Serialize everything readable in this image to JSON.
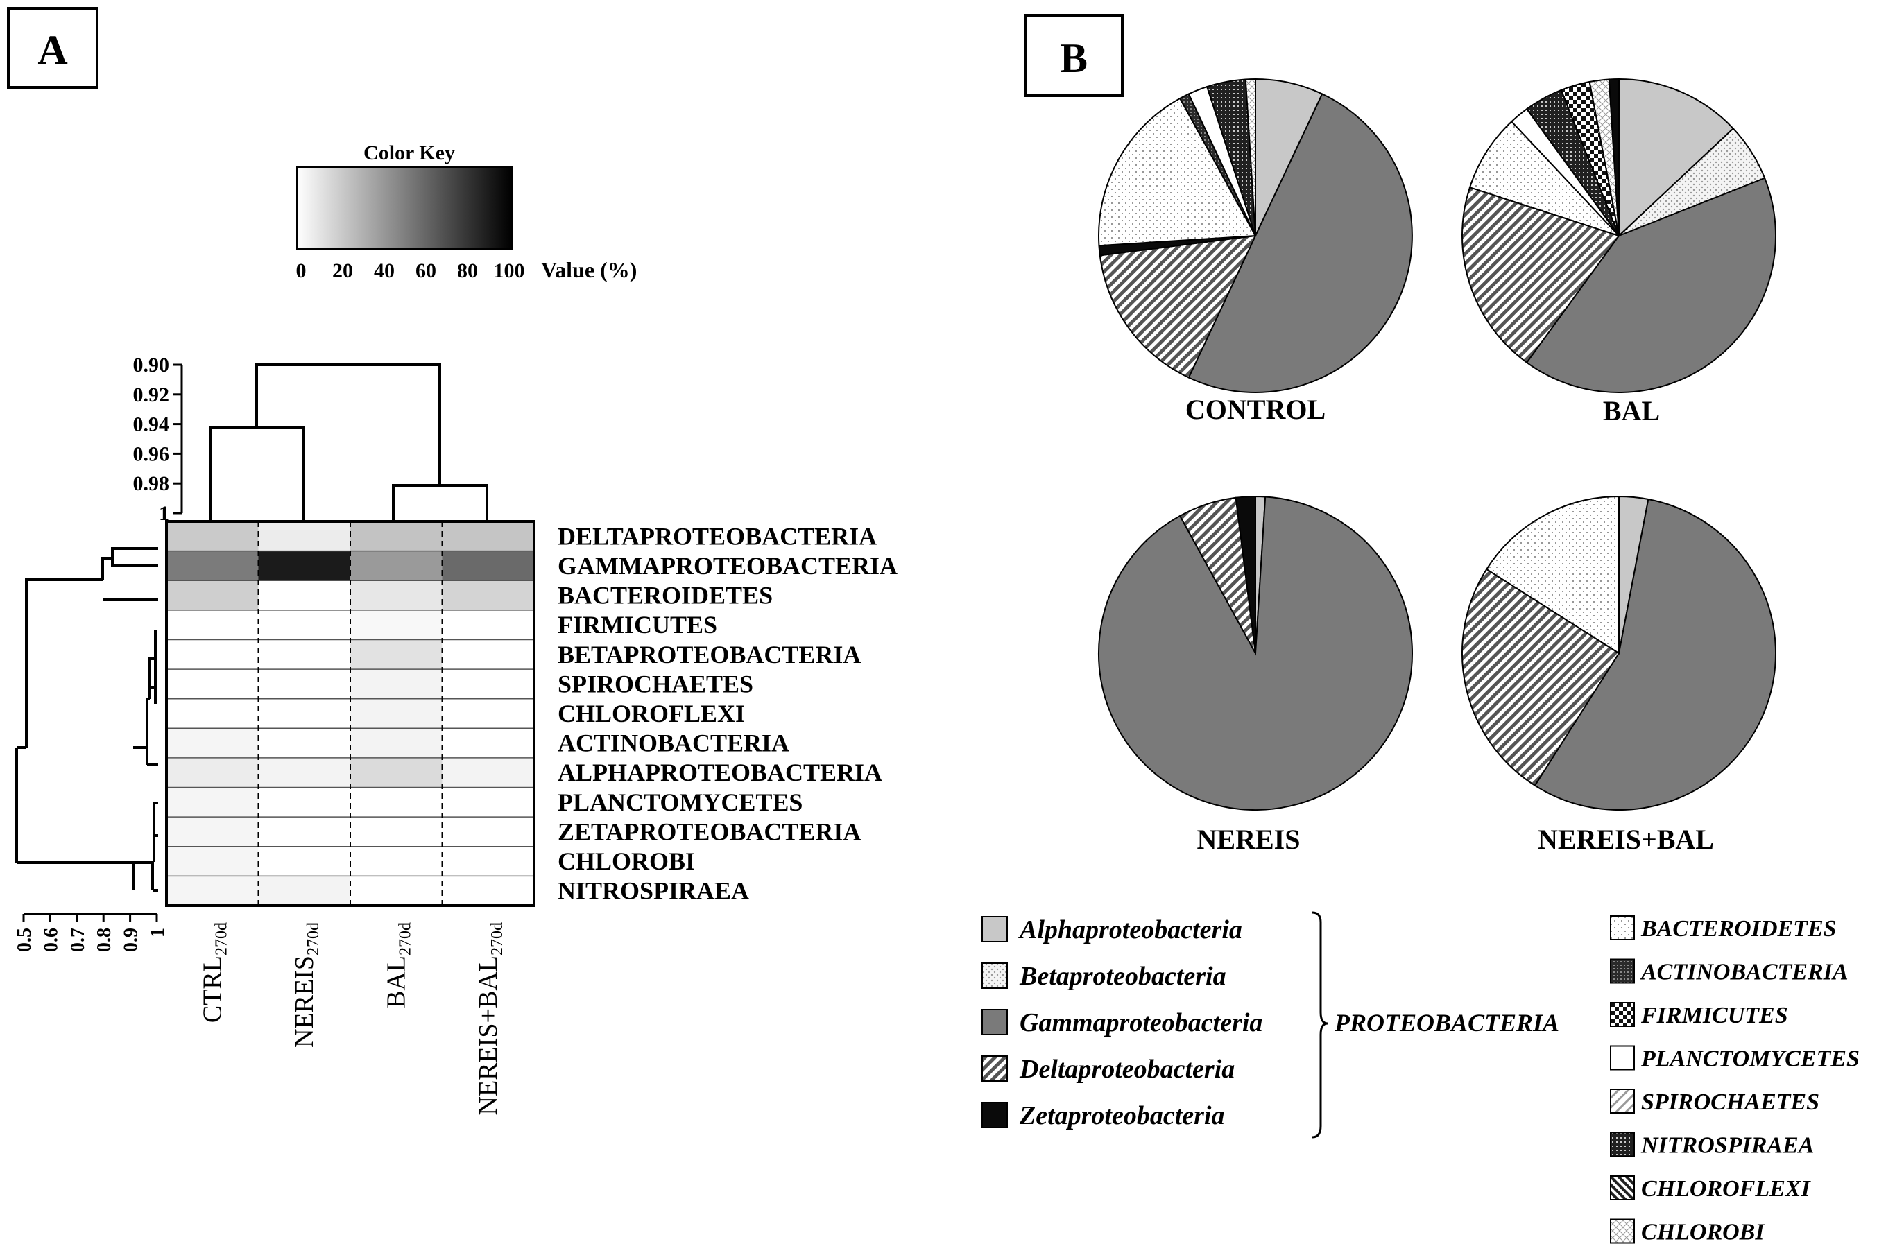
{
  "panels": {
    "a": {
      "label": "A"
    },
    "b": {
      "label": "B"
    }
  },
  "colors": {
    "ink": "#000000",
    "light_gray": "#c8c8c8",
    "mid_gray": "#8a8a8a",
    "pie_gray": "#7a7a7a",
    "dark": "#3a3a3a",
    "black": "#0a0a0a"
  },
  "chart_data": [
    {
      "type": "heatmap",
      "title": "",
      "color_key": {
        "title": "Color Key",
        "value_label": "Value (%)",
        "ticks": [
          "0",
          "20",
          "40",
          "60",
          "80",
          "100"
        ],
        "range": [
          0,
          100
        ],
        "gradient": "white-to-black"
      },
      "columns": [
        "CTRL",
        "NEREIS",
        "BAL",
        "NEREIS+BAL"
      ],
      "column_subscript": "270d",
      "rows": [
        "DELTAPROTEOBACTERIA",
        "GAMMAPROTEOBACTERIA",
        "BACTEROIDETES",
        "FIRMICUTES",
        "BETAPROTEOBACTERIA",
        "SPIROCHAETES",
        "CHLOROFLEXI",
        "ACTINOBACTERIA",
        "ALPHAPROTEOBACTERIA",
        "PLANCTOMYCETES",
        "ZETAPROTEOBACTERIA",
        "CHLOROBI",
        "NITROSPIRAEA"
      ],
      "values": [
        [
          22,
          8,
          25,
          24
        ],
        [
          55,
          95,
          42,
          62
        ],
        [
          20,
          0,
          10,
          18
        ],
        [
          0,
          0,
          3,
          0
        ],
        [
          0,
          0,
          12,
          0
        ],
        [
          0,
          0,
          5,
          0
        ],
        [
          0,
          0,
          5,
          0
        ],
        [
          4,
          0,
          5,
          0
        ],
        [
          8,
          5,
          15,
          5
        ],
        [
          4,
          0,
          0,
          0
        ],
        [
          4,
          0,
          0,
          0
        ],
        [
          4,
          0,
          0,
          0
        ],
        [
          4,
          5,
          0,
          0
        ]
      ],
      "column_dendrogram": {
        "axis_ticks": [
          "0.90",
          "0.92",
          "0.94",
          "0.96",
          "0.98",
          "1"
        ],
        "axis_range": [
          0.9,
          1.0
        ],
        "merges": [
          {
            "left": "CTRL",
            "right": "NEREIS",
            "height": 0.94
          },
          {
            "left": "BAL",
            "right": "NEREIS+BAL",
            "height": 0.98
          },
          {
            "left": "CTRL+NEREIS",
            "right": "BAL+NEREIS+BAL",
            "height": 0.9
          }
        ]
      },
      "row_dendrogram": {
        "axis_ticks": [
          "0.5",
          "0.6",
          "0.7",
          "0.8",
          "0.9",
          "1"
        ],
        "axis_range": [
          0.5,
          1.0
        ]
      }
    },
    {
      "type": "pie",
      "title": "CONTROL",
      "slices": [
        {
          "category": "Alphaproteobacteria",
          "value": 7
        },
        {
          "category": "Gammaproteobacteria",
          "value": 50
        },
        {
          "category": "Deltaproteobacteria",
          "value": 16
        },
        {
          "category": "Zetaproteobacteria",
          "value": 1
        },
        {
          "category": "BACTEROIDETES",
          "value": 18
        },
        {
          "category": "ACTINOBACTERIA",
          "value": 1
        },
        {
          "category": "PLANCTOMYCETES",
          "value": 2
        },
        {
          "category": "NITROSPIRAEA",
          "value": 4
        },
        {
          "category": "CHLOROBI",
          "value": 1
        }
      ]
    },
    {
      "type": "pie",
      "title": "BAL",
      "slices": [
        {
          "category": "Alphaproteobacteria",
          "value": 13
        },
        {
          "category": "Betaproteobacteria",
          "value": 6
        },
        {
          "category": "Gammaproteobacteria",
          "value": 41
        },
        {
          "category": "Deltaproteobacteria",
          "value": 20
        },
        {
          "category": "BACTEROIDETES",
          "value": 8
        },
        {
          "category": "PLANCTOMYCETES",
          "value": 2
        },
        {
          "category": "NITROSPIRAEA",
          "value": 4
        },
        {
          "category": "FIRMICUTES",
          "value": 3
        },
        {
          "category": "CHLOROBI",
          "value": 2
        },
        {
          "category": "Zetaproteobacteria",
          "value": 1
        }
      ]
    },
    {
      "type": "pie",
      "title": "NEREIS",
      "slices": [
        {
          "category": "Alphaproteobacteria",
          "value": 1
        },
        {
          "category": "Gammaproteobacteria",
          "value": 91
        },
        {
          "category": "Deltaproteobacteria",
          "value": 6
        },
        {
          "category": "Zetaproteobacteria",
          "value": 2
        }
      ]
    },
    {
      "type": "pie",
      "title": "NEREIS+BAL",
      "slices": [
        {
          "category": "Alphaproteobacteria",
          "value": 3
        },
        {
          "category": "Gammaproteobacteria",
          "value": 56
        },
        {
          "category": "Deltaproteobacteria",
          "value": 25
        },
        {
          "category": "BACTEROIDETES",
          "value": 16
        }
      ]
    }
  ],
  "legend": {
    "proteobacteria": [
      {
        "label": "Alphaproteobacteria",
        "pattern": "light_gray"
      },
      {
        "label": "Betaproteobacteria",
        "pattern": "dots"
      },
      {
        "label": "Gammaproteobacteria",
        "pattern": "checker"
      },
      {
        "label": "Deltaproteobacteria",
        "pattern": "diag"
      },
      {
        "label": "Zetaproteobacteria",
        "pattern": "black"
      }
    ],
    "group_label": "PROTEOBACTERIA",
    "others": [
      {
        "label": "BACTEROIDETES",
        "pattern": "sparse_dots"
      },
      {
        "label": "ACTINOBACTERIA",
        "pattern": "grid"
      },
      {
        "label": "FIRMICUTES",
        "pattern": "firmicutes"
      },
      {
        "label": "PLANCTOMYCETES",
        "pattern": "white"
      },
      {
        "label": "SPIROCHAETES",
        "pattern": "diag_light"
      },
      {
        "label": "NITROSPIRAEA",
        "pattern": "dark_dots"
      },
      {
        "label": "CHLOROFLEXI",
        "pattern": "back_diag"
      },
      {
        "label": "CHLOROBI",
        "pattern": "cross"
      }
    ]
  }
}
